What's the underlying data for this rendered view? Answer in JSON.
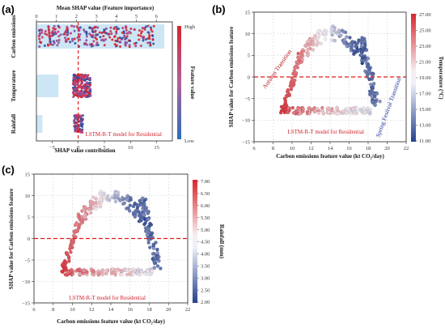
{
  "panel_labels": {
    "a": "(a)",
    "b": "(b)",
    "c": "(c)"
  },
  "colors": {
    "high": "#d7262e",
    "low": "#2b4ea0",
    "mid": "#f4f0f2",
    "bar": "#cde6f5",
    "dash": "#e01b1b"
  },
  "chart_data": [
    {
      "type": "scatter",
      "name": "beeswarm",
      "top_title": "Mean SHAP value  (Feature importance)",
      "top_ticks": [
        "0",
        "1",
        "2",
        "3",
        "4",
        "5",
        "6"
      ],
      "top_range": [
        0,
        6.8
      ],
      "xlabel": "SHAP value contribution",
      "x_ticks": [
        -5,
        0,
        5,
        10,
        15
      ],
      "xlim": [
        -8,
        18
      ],
      "features": [
        "Carbon emissions",
        "Temperature",
        "Rainfall"
      ],
      "mean_abs_shap": [
        6.4,
        1.1,
        0.3
      ],
      "colorbar_title": "Feature value",
      "colorbar_high": "High",
      "colorbar_low": "Low",
      "model_label": "LSTM-R-T model for Residential",
      "dashed_x": 0
    },
    {
      "type": "scatter",
      "name": "dependence-temperature",
      "xlabel": "Carbon emissions feature value (kt CO₂/day)",
      "ylabel": "SHAP value for Carbon emissions feature",
      "x_ticks": [
        6,
        8,
        10,
        12,
        14,
        16,
        18,
        20,
        22
      ],
      "xlim": [
        6,
        22
      ],
      "y_ticks": [
        -15,
        -10,
        -5,
        0,
        5,
        10,
        15
      ],
      "ylim": [
        -15,
        15
      ],
      "dashed_y": 0,
      "colorbar_label": "Temperature (°C)",
      "colorbar_ticks": [
        "27.00",
        "25.00",
        "23.00",
        "21.00",
        "19.00",
        "17.00",
        "15.00",
        "13.00",
        "11.00"
      ],
      "colorbar_range": [
        11,
        27
      ],
      "annotations": [
        "Autumn Transition",
        "Spring Festival Transition"
      ],
      "model_label": "LSTM-R-T model for Residential"
    },
    {
      "type": "scatter",
      "name": "dependence-rainfall",
      "xlabel": "Carbon emissions feature value (kt CO₂/day)",
      "ylabel": "SHAP value for Carbon emissions feature",
      "x_ticks": [
        6,
        8,
        10,
        12,
        14,
        16,
        18,
        20,
        22
      ],
      "xlim": [
        6,
        22
      ],
      "y_ticks": [
        -15,
        -10,
        -5,
        0,
        5,
        10,
        15
      ],
      "ylim": [
        -15,
        15
      ],
      "dashed_y": 0,
      "colorbar_label": "Rainfall (mm)",
      "colorbar_ticks": [
        "7.00",
        "6.50",
        "6.00",
        "5.50",
        "5.00",
        "4.50",
        "4.00",
        "3.50",
        "3.00",
        "2.50",
        "2.00"
      ],
      "colorbar_range": [
        2,
        7
      ],
      "model_label": "LSTM-R-T model for Residential"
    }
  ]
}
